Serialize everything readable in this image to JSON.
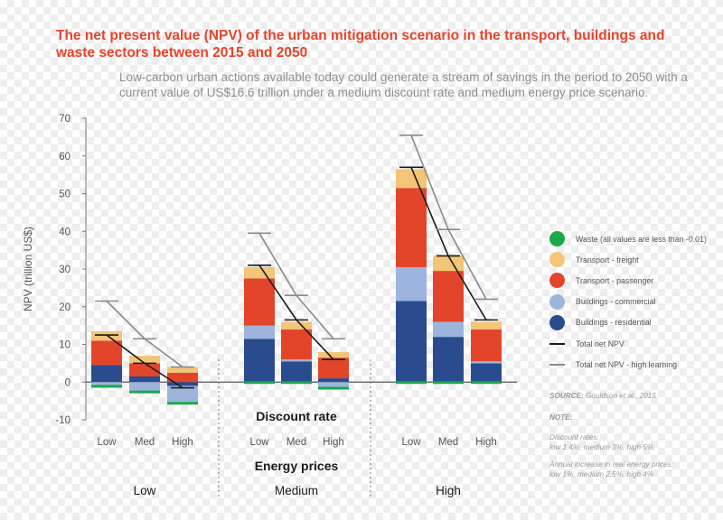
{
  "title": "The net present value (NPV) of the urban mitigation scenario in the transport, buildings and waste sectors between 2015 and 2050",
  "subtitle": "Low-carbon urban actions available today could generate a stream of savings in the period to 2050 with a current value of US$16.6 trillion under a medium discount rate and medium energy price scenario.",
  "chart_data": {
    "type": "bar",
    "stacked": true,
    "ylabel": "NPV (trillion US$)",
    "ylim": [
      -10,
      70
    ],
    "yticks": [
      "70",
      "60",
      "50",
      "40",
      "30",
      "20",
      "10",
      "0",
      "-10"
    ],
    "discount_rate_label": "Discount rate",
    "energy_prices_label": "Energy prices",
    "groups": [
      {
        "name": "Low",
        "categories": [
          "Low",
          "Med",
          "High"
        ]
      },
      {
        "name": "Medium",
        "categories": [
          "Low",
          "Med",
          "High"
        ]
      },
      {
        "name": "High",
        "categories": [
          "Low",
          "Med",
          "High"
        ]
      }
    ],
    "series": [
      {
        "name": "Buildings - residential",
        "color": "#2a4c8f",
        "values": [
          4.5,
          1.5,
          -1,
          11.5,
          5.5,
          1,
          21.5,
          12,
          5
        ]
      },
      {
        "name": "Buildings - commercial",
        "color": "#9db4dd",
        "values": [
          -1,
          -2.5,
          -4.5,
          3.5,
          0.5,
          -1.5,
          9,
          4,
          0.5
        ]
      },
      {
        "name": "Transport - passenger",
        "color": "#e3452a",
        "values": [
          6.5,
          3.5,
          2.5,
          12.5,
          8,
          5.5,
          21,
          13.5,
          8.5
        ]
      },
      {
        "name": "Transport - freight",
        "color": "#f3c577",
        "values": [
          2.5,
          2,
          1.5,
          3,
          2,
          1.5,
          5,
          4,
          2
        ]
      },
      {
        "name": "Waste (all values are less than -0.01)",
        "color": "#1aa94a",
        "values": [
          -0.01,
          -0.01,
          -0.01,
          -0.01,
          -0.01,
          -0.01,
          -0.01,
          -0.01,
          -0.01
        ]
      }
    ],
    "lines": [
      {
        "name": "Total net NPV",
        "color": "#1a1a1a",
        "values": [
          12.5,
          5,
          -1.5,
          31,
          16.5,
          6,
          57,
          33.5,
          16.5
        ]
      },
      {
        "name": "Total net NPV - high learning",
        "color": "#8a8a8a",
        "values": [
          21.5,
          11.5,
          4,
          39.5,
          23,
          11.5,
          65.5,
          40.5,
          22
        ]
      }
    ]
  },
  "legend": [
    {
      "label": "Waste (all values are less than -0.01)",
      "color": "#1aa94a",
      "shape": "circle"
    },
    {
      "label": "Transport - freight",
      "color": "#f3c577",
      "shape": "circle"
    },
    {
      "label": "Transport - passenger",
      "color": "#e3452a",
      "shape": "circle"
    },
    {
      "label": "Buildings - commercial",
      "color": "#9db4dd",
      "shape": "circle"
    },
    {
      "label": "Buildings - residential",
      "color": "#2a4c8f",
      "shape": "circle"
    },
    {
      "label": "Total net NPV",
      "color": "#1a1a1a",
      "shape": "line"
    },
    {
      "label": "Total net NPV - high learning",
      "color": "#8a8a8a",
      "shape": "line"
    }
  ],
  "notes": {
    "source_label": "SOURCE:",
    "source_text": "Gouldson et al., 2015",
    "note_label": "NOTE:",
    "discount_heading": "Discount rates:",
    "discount_text": "low 1.4%, medium 3%, high 5%.",
    "energy_heading": "Annual increase in real energy prices:",
    "energy_text": "low 1%, medium 2.5%, high 4%"
  }
}
